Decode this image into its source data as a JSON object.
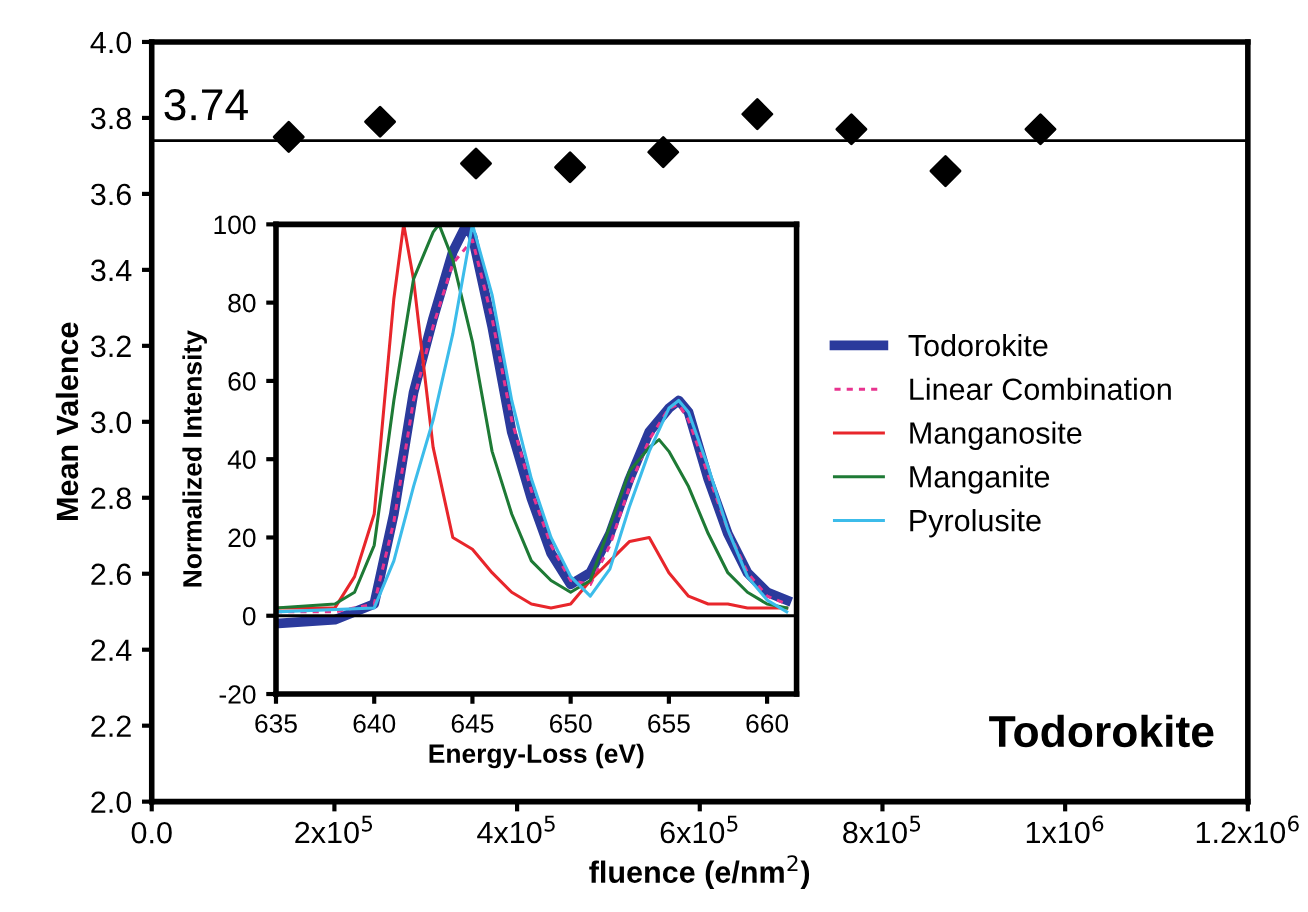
{
  "chart_data": [
    {
      "type": "scatter",
      "xlabel": "fluence (e/nm$^{2}$)",
      "ylabel": "Mean Valence",
      "marker": "diamond",
      "grid": false,
      "x": [
        150000,
        250000,
        355000,
        458000,
        560000,
        663000,
        766000,
        869000,
        973000
      ],
      "series": [
        {
          "color": "#000000",
          "values": [
            3.75,
            3.79,
            3.68,
            3.67,
            3.71,
            3.81,
            3.77,
            3.66,
            3.77
          ]
        }
      ],
      "xlim": [
        0,
        1200000
      ],
      "xticks": [
        {
          "value": 0,
          "label": "0.0"
        },
        {
          "value": 200000,
          "label": "2x10$^{5}$"
        },
        {
          "value": 400000,
          "label": "4x10$^{5}$"
        },
        {
          "value": 600000,
          "label": "6x10$^{5}$"
        },
        {
          "value": 800000,
          "label": "8x10$^{5}$"
        },
        {
          "value": 1000000,
          "label": "1x10$^{6}$"
        },
        {
          "value": 1200000,
          "label": "1.2x10$^{6}$"
        }
      ],
      "ylim": [
        2,
        4
      ],
      "yticks": [
        {
          "value": 2,
          "label": "2.0"
        },
        {
          "value": 2.2,
          "label": "2.2"
        },
        {
          "value": 2.4,
          "label": "2.4"
        },
        {
          "value": 2.6,
          "label": "2.6"
        },
        {
          "value": 2.8,
          "label": "2.8"
        },
        {
          "value": 3,
          "label": "3.0"
        },
        {
          "value": 3.2,
          "label": "3.2"
        },
        {
          "value": 3.4,
          "label": "3.4"
        },
        {
          "value": 3.6,
          "label": "3.6"
        },
        {
          "value": 3.8,
          "label": "3.8"
        },
        {
          "value": 4,
          "label": "4.0"
        }
      ],
      "ref_lines": [
        {
          "axis": "y",
          "value": 3.74,
          "label": "3.74",
          "color": "#000000"
        }
      ],
      "annotations": [
        "Todorokite"
      ]
    },
    {
      "type": "line",
      "xlabel": "Energy-Loss (eV)",
      "ylabel": "Normalized Intensity",
      "legend": "right",
      "grid": false,
      "xlim": [
        635,
        661.5
      ],
      "xticks": [
        635,
        640,
        645,
        650,
        655,
        660
      ],
      "ylim": [
        -20,
        100
      ],
      "yticks": [
        -20,
        0,
        20,
        40,
        60,
        80,
        100
      ],
      "ref_lines": [
        {
          "axis": "y",
          "value": 0,
          "color": "#000000"
        }
      ],
      "series": [
        {
          "name": "Todorokite",
          "color": "#2b3a9c",
          "line_style": "solid",
          "x": [
            635,
            638,
            640,
            641,
            642,
            643,
            644,
            644.7,
            645,
            646,
            647,
            648,
            649,
            650,
            651,
            652,
            653,
            654,
            655,
            655.5,
            656,
            657,
            658,
            659,
            660,
            661
          ],
          "values": [
            -2,
            -1,
            3,
            26,
            57,
            76,
            93,
            100,
            97,
            74,
            47,
            30,
            16,
            8,
            11,
            21,
            35,
            47,
            53,
            55,
            52,
            35,
            21,
            11,
            6,
            4
          ]
        },
        {
          "name": "Linear Combination",
          "color": "#e8338f",
          "line_style": "dashed",
          "x": [
            635,
            638,
            640,
            641,
            642,
            643,
            644,
            645,
            646,
            647,
            648,
            649,
            650,
            651,
            652,
            653,
            654,
            655,
            655.5,
            656,
            657,
            658,
            659,
            660,
            661
          ],
          "values": [
            1,
            1,
            3,
            24,
            55,
            74,
            90,
            96,
            76,
            50,
            32,
            18,
            9,
            8,
            18,
            33,
            45,
            53,
            54,
            50,
            36,
            22,
            11,
            5,
            3
          ]
        },
        {
          "name": "Manganosite",
          "color": "#e8262b",
          "line_style": "solid",
          "x": [
            635,
            638,
            639,
            640,
            641,
            641.5,
            642,
            643,
            644,
            645,
            646,
            647,
            648,
            649,
            650,
            651,
            652,
            653,
            654,
            655,
            656,
            657,
            658,
            659,
            660,
            661
          ],
          "values": [
            2,
            2,
            10,
            26,
            81,
            100,
            86,
            43,
            20,
            17,
            11,
            6,
            3,
            2,
            3,
            9,
            14,
            19,
            20,
            11,
            5,
            3,
            3,
            2,
            2,
            2
          ]
        },
        {
          "name": "Manganite",
          "color": "#1e7a35",
          "line_style": "solid",
          "x": [
            635,
            638,
            639,
            640,
            641,
            642,
            643,
            643.3,
            644,
            645,
            646,
            647,
            648,
            649,
            650,
            651,
            652,
            653,
            654,
            654.5,
            655,
            656,
            657,
            658,
            659,
            660,
            661
          ],
          "values": [
            2,
            3,
            6,
            18,
            55,
            86,
            98,
            100,
            91,
            70,
            42,
            26,
            14,
            9,
            6,
            9,
            23,
            37,
            43,
            45,
            42,
            33,
            21,
            11,
            6,
            3,
            2
          ]
        },
        {
          "name": "Pyrolusite",
          "color": "#3cbcea",
          "line_style": "solid",
          "x": [
            635,
            640,
            641,
            642,
            643,
            644,
            645,
            646,
            647,
            648,
            649,
            650,
            651,
            652,
            653,
            654,
            655,
            655.5,
            656,
            657,
            658,
            659,
            660,
            661
          ],
          "values": [
            1,
            2,
            14,
            33,
            50,
            72,
            100,
            82,
            55,
            35,
            20,
            10,
            5,
            12,
            28,
            42,
            53,
            55,
            52,
            38,
            22,
            10,
            4,
            1
          ]
        }
      ]
    }
  ]
}
